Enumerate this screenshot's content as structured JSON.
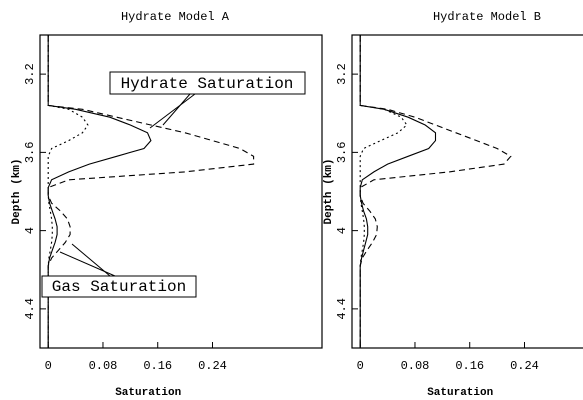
{
  "chart_data": [
    {
      "type": "line",
      "title": "Hydrate Model A",
      "x_label": "Saturation",
      "y_label": "Depth (km)",
      "annotations": [
        "Hydrate Saturation",
        "Gas Saturation"
      ],
      "xlim": [
        -0.012,
        0.4
      ],
      "xticks": [
        0,
        0.08,
        0.16,
        0.24
      ],
      "ylim": [
        3.0,
        4.6
      ],
      "yticks": [
        3.2,
        3.6,
        4,
        4.4
      ],
      "y_inverted": true,
      "color": "#000000",
      "y": [
        3.0,
        3.36,
        3.38,
        3.42,
        3.46,
        3.5,
        3.54,
        3.58,
        3.62,
        3.66,
        3.7,
        3.74,
        3.78,
        3.82,
        3.86,
        3.9,
        3.94,
        3.98,
        4.02,
        4.06,
        4.1,
        4.14,
        4.18,
        4.6
      ],
      "series": [
        {
          "dash": "solid",
          "values": [
            0,
            0,
            0.04,
            0.09,
            0.12,
            0.145,
            0.15,
            0.14,
            0.1,
            0.06,
            0.03,
            0.005,
            0,
            0,
            0.002,
            0.006,
            0.01,
            0.013,
            0.013,
            0.01,
            0.006,
            0.002,
            0,
            0
          ]
        },
        {
          "dash": "dashed",
          "values": [
            0,
            0,
            0.05,
            0.1,
            0.15,
            0.2,
            0.24,
            0.28,
            0.3,
            0.3,
            0.2,
            0.03,
            0,
            0,
            0.005,
            0.018,
            0.028,
            0.032,
            0.032,
            0.025,
            0.015,
            0.005,
            0,
            0
          ]
        },
        {
          "dash": "dotted",
          "values": [
            0,
            0,
            0.03,
            0.05,
            0.058,
            0.05,
            0.03,
            0.005,
            0,
            0,
            0,
            0,
            0,
            0,
            0.001,
            0.003,
            0.005,
            0.006,
            0.006,
            0.005,
            0.003,
            0.001,
            0,
            0
          ]
        }
      ]
    },
    {
      "type": "line",
      "title": "Hydrate Model B",
      "x_label": "Saturation",
      "y_label": "Depth (km)",
      "xlim": [
        -0.012,
        0.4
      ],
      "xticks": [
        0,
        0.08,
        0.16,
        0.24
      ],
      "ylim": [
        3.0,
        4.6
      ],
      "yticks": [
        3.2,
        3.6,
        4,
        4.4
      ],
      "y_inverted": true,
      "color": "#000000",
      "y": [
        3.0,
        3.36,
        3.38,
        3.42,
        3.46,
        3.5,
        3.54,
        3.58,
        3.62,
        3.66,
        3.7,
        3.74,
        3.78,
        3.82,
        3.86,
        3.9,
        3.94,
        3.98,
        4.02,
        4.06,
        4.1,
        4.14,
        4.18,
        4.6
      ],
      "series": [
        {
          "dash": "solid",
          "values": [
            0,
            0,
            0.035,
            0.07,
            0.095,
            0.11,
            0.11,
            0.1,
            0.07,
            0.04,
            0.02,
            0.003,
            0,
            0,
            0.002,
            0.005,
            0.009,
            0.011,
            0.011,
            0.008,
            0.005,
            0.002,
            0,
            0
          ]
        },
        {
          "dash": "dashed",
          "values": [
            0,
            0,
            0.04,
            0.08,
            0.11,
            0.14,
            0.17,
            0.2,
            0.22,
            0.21,
            0.13,
            0.02,
            0,
            0,
            0.004,
            0.014,
            0.022,
            0.025,
            0.024,
            0.018,
            0.01,
            0.003,
            0,
            0
          ]
        },
        {
          "dash": "dotted",
          "values": [
            0,
            0,
            0.035,
            0.06,
            0.068,
            0.055,
            0.03,
            0.005,
            0,
            0,
            0,
            0,
            0,
            0,
            0.001,
            0.003,
            0.005,
            0.006,
            0.006,
            0.005,
            0.003,
            0.001,
            0,
            0
          ]
        }
      ]
    }
  ]
}
